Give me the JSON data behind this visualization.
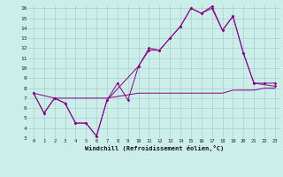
{
  "bg_color": "#cceee8",
  "grid_color": "#aacccc",
  "line_color": "#880088",
  "xlabel": "Windchill (Refroidissement éolien,°C)",
  "xlim": [
    -0.5,
    23.5
  ],
  "ylim": [
    3,
    16.3
  ],
  "xticks": [
    0,
    1,
    2,
    3,
    4,
    5,
    6,
    7,
    8,
    9,
    10,
    11,
    12,
    13,
    14,
    15,
    16,
    17,
    18,
    19,
    20,
    21,
    22,
    23
  ],
  "yticks": [
    3,
    4,
    5,
    6,
    7,
    8,
    9,
    10,
    11,
    12,
    13,
    14,
    15,
    16
  ],
  "line1_x": [
    0,
    1,
    2,
    3,
    4,
    5,
    6,
    7,
    8,
    9,
    10,
    11,
    12,
    13,
    14,
    15,
    16,
    17,
    18,
    19,
    20,
    21,
    23
  ],
  "line1_y": [
    7.5,
    5.5,
    7.0,
    6.5,
    4.5,
    4.5,
    3.2,
    6.8,
    8.5,
    6.8,
    10.2,
    11.8,
    11.8,
    13.0,
    14.2,
    16.0,
    15.5,
    16.0,
    13.8,
    15.2,
    11.5,
    8.5,
    8.2
  ],
  "line2_x": [
    0,
    1,
    2,
    3,
    4,
    5,
    6,
    7,
    10,
    11,
    12,
    13,
    14,
    15,
    16,
    17,
    18,
    19,
    20,
    21,
    22,
    23
  ],
  "line2_y": [
    7.5,
    5.5,
    7.0,
    6.5,
    4.5,
    4.5,
    3.2,
    6.8,
    10.2,
    12.0,
    11.8,
    13.0,
    14.2,
    16.0,
    15.5,
    16.2,
    13.8,
    15.2,
    11.5,
    8.5,
    8.5,
    8.5
  ],
  "line3_x": [
    0,
    2,
    7,
    10,
    11,
    12,
    13,
    14,
    15,
    16,
    17,
    18,
    19,
    20,
    21,
    22,
    23
  ],
  "line3_y": [
    7.5,
    7.0,
    7.0,
    7.5,
    7.5,
    7.5,
    7.5,
    7.5,
    7.5,
    7.5,
    7.5,
    7.5,
    7.8,
    7.8,
    7.8,
    8.0,
    8.0
  ]
}
